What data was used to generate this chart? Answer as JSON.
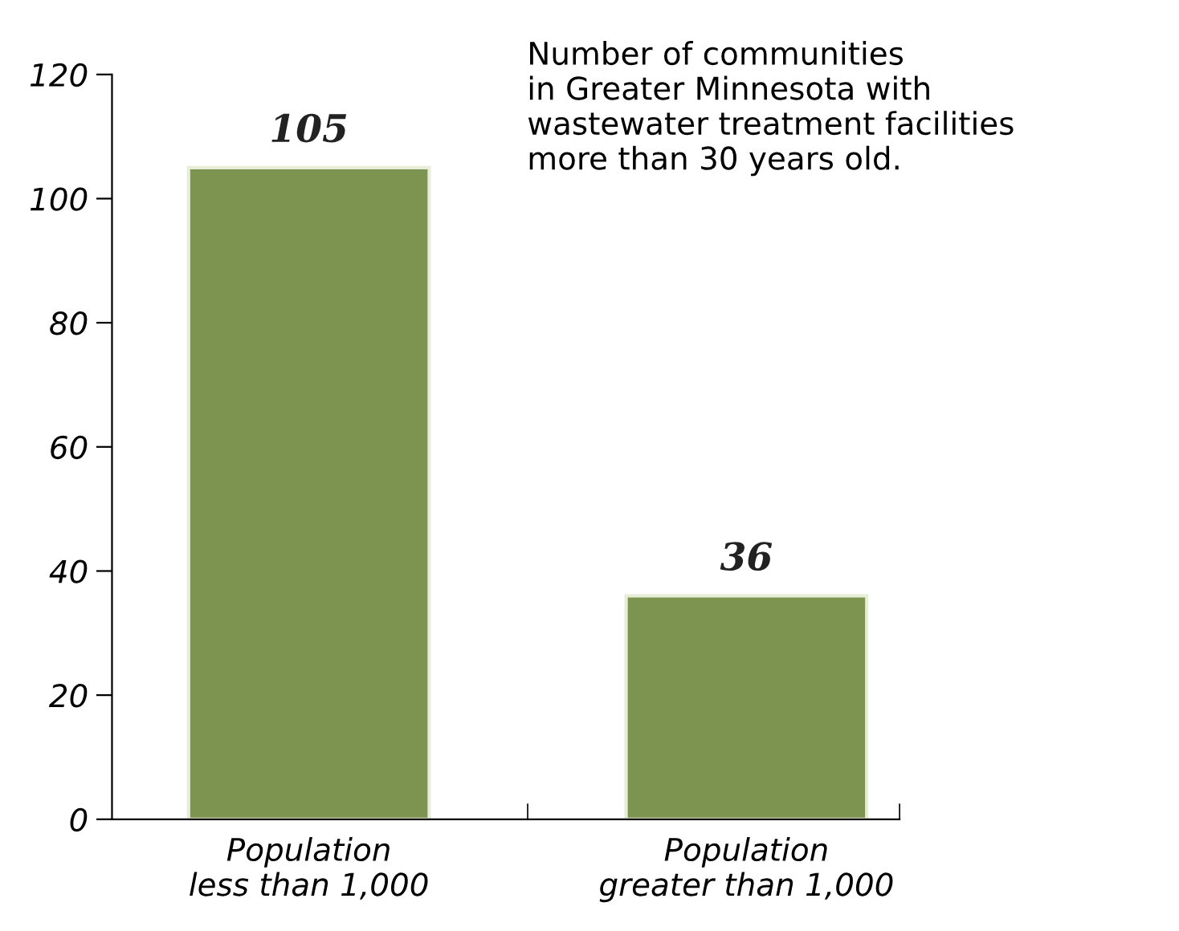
{
  "chart_data": {
    "type": "bar",
    "title": "Number of communities\nin Greater Minnesota with\nwastewater treatment facilities\nmore than 30 years old.",
    "categories": [
      "Population\nless than 1,000",
      "Population\ngreater than 1,000"
    ],
    "values": [
      105,
      36
    ],
    "color": "#7d9450",
    "ylim": [
      0,
      120
    ],
    "yticks": [
      0,
      20,
      40,
      60,
      80,
      100,
      120
    ],
    "data_labels": true,
    "grid": false,
    "legend": false
  }
}
